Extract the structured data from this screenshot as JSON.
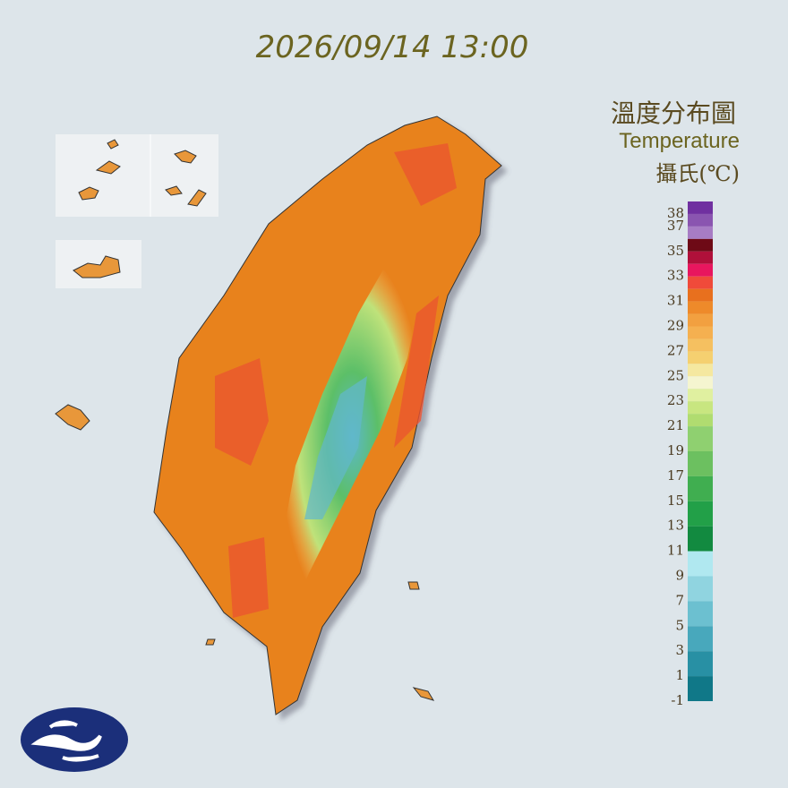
{
  "header": {
    "title": "2026/09/14 13:00"
  },
  "legend": {
    "title": "溫度分布圖",
    "subtitle": "Temperature",
    "unit": "攝氏(℃)",
    "ticks": [
      38,
      37,
      35,
      33,
      31,
      29,
      27,
      25,
      23,
      21,
      19,
      17,
      15,
      13,
      11,
      9,
      7,
      5,
      3,
      1,
      -1
    ],
    "bands": [
      {
        "min": 38,
        "max": 39,
        "color": "#7030a0"
      },
      {
        "min": 37,
        "max": 38,
        "color": "#8a55b0"
      },
      {
        "min": 36,
        "max": 37,
        "color": "#a77cc4"
      },
      {
        "min": 35,
        "max": 36,
        "color": "#6e0a16"
      },
      {
        "min": 34,
        "max": 35,
        "color": "#b0103a"
      },
      {
        "min": 33,
        "max": 34,
        "color": "#e8165e"
      },
      {
        "min": 32,
        "max": 33,
        "color": "#f04a3a"
      },
      {
        "min": 31,
        "max": 32,
        "color": "#e8701e"
      },
      {
        "min": 30,
        "max": 31,
        "color": "#ee8a2a"
      },
      {
        "min": 29,
        "max": 30,
        "color": "#f2a040"
      },
      {
        "min": 28,
        "max": 29,
        "color": "#f5b050"
      },
      {
        "min": 27,
        "max": 28,
        "color": "#f5c060"
      },
      {
        "min": 26,
        "max": 27,
        "color": "#f5d070"
      },
      {
        "min": 25,
        "max": 26,
        "color": "#f5e8a0"
      },
      {
        "min": 24,
        "max": 25,
        "color": "#f5f5d0"
      },
      {
        "min": 23,
        "max": 24,
        "color": "#e0f0a0"
      },
      {
        "min": 22,
        "max": 23,
        "color": "#c8e680"
      },
      {
        "min": 21,
        "max": 22,
        "color": "#b0dc70"
      },
      {
        "min": 19,
        "max": 21,
        "color": "#8fd070"
      },
      {
        "min": 17,
        "max": 19,
        "color": "#6cc060"
      },
      {
        "min": 15,
        "max": 17,
        "color": "#40ae50"
      },
      {
        "min": 13,
        "max": 15,
        "color": "#22a048"
      },
      {
        "min": 11,
        "max": 13,
        "color": "#128a40"
      },
      {
        "min": 9,
        "max": 11,
        "color": "#b0e8f0"
      },
      {
        "min": 7,
        "max": 9,
        "color": "#90d4e0"
      },
      {
        "min": 5,
        "max": 7,
        "color": "#6cc0d0"
      },
      {
        "min": 3,
        "max": 5,
        "color": "#48a8bc"
      },
      {
        "min": 1,
        "max": 3,
        "color": "#2890a4"
      },
      {
        "min": -1,
        "max": 1,
        "color": "#107888"
      }
    ]
  }
}
